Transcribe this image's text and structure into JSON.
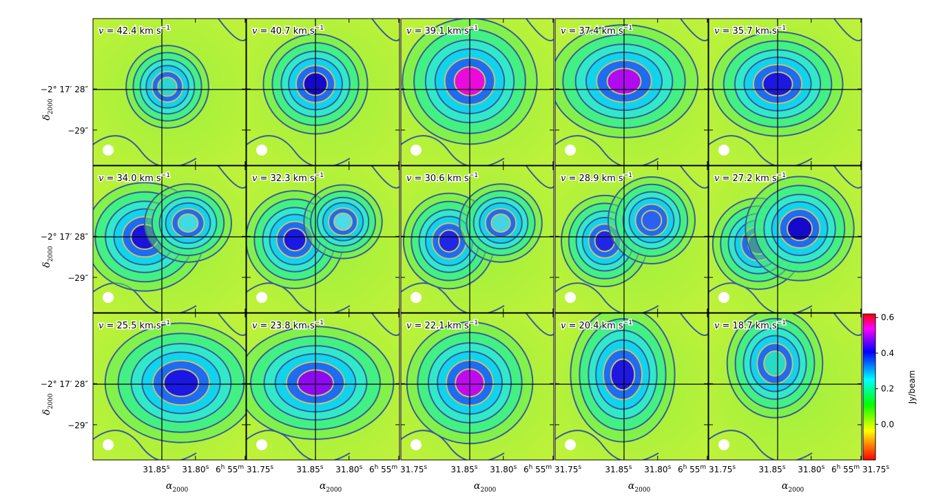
{
  "chart_data": {
    "type": "heatmap",
    "layout": "3x5 channel map grid",
    "panels": [
      {
        "velocity": "42.4",
        "label_prefix": "v = ",
        "label_unit": "km s",
        "label_exp": "−1"
      },
      {
        "velocity": "40.7",
        "label_prefix": "v = ",
        "label_unit": "km s",
        "label_exp": "−1"
      },
      {
        "velocity": "39.1",
        "label_prefix": "v = ",
        "label_unit": "km s",
        "label_exp": "−1"
      },
      {
        "velocity": "37.4",
        "label_prefix": "v = ",
        "label_unit": "km s",
        "label_exp": "−1"
      },
      {
        "velocity": "35.7",
        "label_prefix": "v = ",
        "label_unit": "km s",
        "label_exp": "−1"
      },
      {
        "velocity": "34.0",
        "label_prefix": "v = ",
        "label_unit": "km s",
        "label_exp": "−1"
      },
      {
        "velocity": "32.3",
        "label_prefix": "v = ",
        "label_unit": "km s",
        "label_exp": "−1"
      },
      {
        "velocity": "30.6",
        "label_prefix": "v = ",
        "label_unit": "km s",
        "label_exp": "−1"
      },
      {
        "velocity": "28.9",
        "label_prefix": "v = ",
        "label_unit": "km s",
        "label_exp": "−1"
      },
      {
        "velocity": "27.2",
        "label_prefix": "v = ",
        "label_unit": "km s",
        "label_exp": "−1"
      },
      {
        "velocity": "25.5",
        "label_prefix": "v = ",
        "label_unit": "km s",
        "label_exp": "−1"
      },
      {
        "velocity": "23.8",
        "label_prefix": "v = ",
        "label_unit": "km s",
        "label_exp": "−1"
      },
      {
        "velocity": "22.1",
        "label_prefix": "v = ",
        "label_unit": "km s",
        "label_exp": "−1"
      },
      {
        "velocity": "20.4",
        "label_prefix": "v = ",
        "label_unit": "km s",
        "label_exp": "−1"
      },
      {
        "velocity": "18.7",
        "label_prefix": "v = ",
        "label_unit": "km s",
        "label_exp": "−1"
      }
    ],
    "xlabel": "α",
    "xlabel_sub": "2000",
    "ylabel": "δ",
    "ylabel_sub": "2000",
    "x_ticks": [
      {
        "value": "31.85",
        "sup": "s"
      },
      {
        "value": "31.80",
        "sup": "s"
      },
      {
        "value": "6",
        "sup": "h",
        "value2": "55",
        "sup2": "m",
        "value3": "31.75",
        "sup3": "s"
      }
    ],
    "y_ticks": [
      {
        "label": "−2° 17′ 28″"
      },
      {
        "label": "−29″"
      }
    ],
    "colorbar": {
      "label": "Jy/beam",
      "ticks": [
        "0.6",
        "0.4",
        "0.2",
        "0.0"
      ],
      "range": [
        -0.2,
        0.62
      ],
      "colormap": [
        "#ff0000",
        "#ffff00",
        "#00ff00",
        "#00ffff",
        "#0000ff",
        "#ff00ff",
        "#ff0000"
      ]
    },
    "contour_colors": {
      "outer": "#3a5c9a",
      "inner": "#c9c070"
    },
    "beam_marker_color": "#ffffff"
  }
}
